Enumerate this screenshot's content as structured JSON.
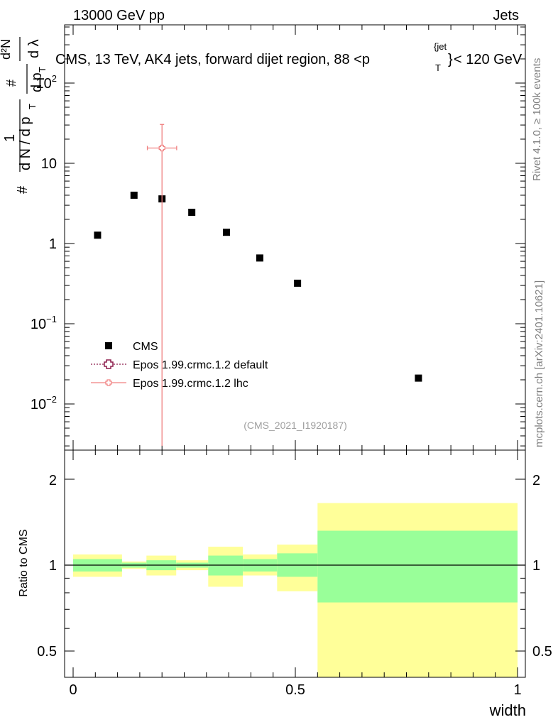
{
  "header": {
    "energy": "13000 GeV pp",
    "category": "Jets"
  },
  "main_plot": {
    "title_left": "CMS, 13 TeV, AK4 jets, forward dijet region, 88 <p",
    "title_sub": "T",
    "title_sup": "{jet",
    "title_close": "}",
    "title_right": "< 120 GeV",
    "ylabel_num_main": "1",
    "ylabel_num_frac": "d²N",
    "ylabel_den_main": "d N / d p",
    "ylabel_den_sub": "T",
    "ylabel_den_frac_top": "#",
    "ylabel_den_frac_bot": "d p",
    "ylabel_den_frac_bot_sub": "T",
    "ylabel_den_frac_end": "d λ",
    "ylabel_prefix": "#",
    "y_tick_labels": [
      "10",
      "10",
      "1",
      "10",
      "10"
    ],
    "y_tick_sup": [
      "2",
      "",
      "",
      "−1",
      "−2"
    ],
    "watermark": "(CMS_2021_I1920187)"
  },
  "legend": [
    {
      "label": "CMS",
      "marker": "filled-square",
      "color": "#000000"
    },
    {
      "label": "Epos 1.99.crmc.1.2 default",
      "marker": "open-cross",
      "color": "#8b1a4a"
    },
    {
      "label": "Epos 1.99.crmc.1.2 lhc",
      "marker": "open-cross-line",
      "color": "#f08080"
    }
  ],
  "side_labels": {
    "rivet": "Rivet 4.1.0, ≥ 100k events",
    "mcplots": "mcplots.cern.ch [arXiv:2401.10621]"
  },
  "ratio_plot": {
    "ylabel": "Ratio to CMS",
    "y_tick_labels": [
      "2",
      "1",
      "0.5"
    ],
    "xlabel": "width",
    "x_tick_labels": [
      "0",
      "0.5",
      "1"
    ]
  },
  "chart_data": {
    "type": "scatter",
    "title": "CMS, 13 TeV, AK4 jets, forward dijet region, 88 < pT < 120 GeV",
    "xlabel": "width",
    "ylabel": "1/dN/dpT dN²/dpT dλ",
    "xlim": [
      -0.02,
      1.02
    ],
    "ylim": [
      0.0028,
      500
    ],
    "yscale": "log",
    "series": [
      {
        "name": "CMS",
        "x": [
          0.055,
          0.137,
          0.2,
          0.267,
          0.345,
          0.42,
          0.505,
          0.777
        ],
        "y": [
          1.27,
          4.0,
          3.6,
          2.45,
          1.38,
          0.66,
          0.32,
          0.021
        ]
      },
      {
        "name": "Epos 1.99.crmc.1.2 lhc",
        "x": [
          0.2
        ],
        "y": [
          15.5
        ],
        "xerr": [
          0.033
        ],
        "yerr_low": [
          15.497
        ],
        "yerr_high": [
          15.0
        ]
      }
    ],
    "ratio": {
      "ylabel": "Ratio to CMS",
      "ylim": [
        0.38,
        2.45
      ],
      "yscale": "log",
      "bins": [
        {
          "x_lo": 0.0,
          "x_hi": 0.11,
          "stat_lo": 0.95,
          "stat_hi": 1.05,
          "total_lo": 0.91,
          "total_hi": 1.09
        },
        {
          "x_lo": 0.11,
          "x_hi": 0.165,
          "stat_lo": 0.98,
          "stat_hi": 1.02,
          "total_lo": 0.97,
          "total_hi": 1.03
        },
        {
          "x_lo": 0.165,
          "x_hi": 0.232,
          "stat_lo": 0.96,
          "stat_hi": 1.04,
          "total_lo": 0.92,
          "total_hi": 1.08
        },
        {
          "x_lo": 0.232,
          "x_hi": 0.304,
          "stat_lo": 0.98,
          "stat_hi": 1.02,
          "total_lo": 0.96,
          "total_hi": 1.04
        },
        {
          "x_lo": 0.304,
          "x_hi": 0.382,
          "stat_lo": 0.92,
          "stat_hi": 1.08,
          "total_lo": 0.84,
          "total_hi": 1.16
        },
        {
          "x_lo": 0.382,
          "x_hi": 0.459,
          "stat_lo": 0.95,
          "stat_hi": 1.05,
          "total_lo": 0.92,
          "total_hi": 1.09
        },
        {
          "x_lo": 0.459,
          "x_hi": 0.55,
          "stat_lo": 0.91,
          "stat_hi": 1.1,
          "total_lo": 0.81,
          "total_hi": 1.18
        },
        {
          "x_lo": 0.55,
          "x_hi": 1.0,
          "stat_lo": 0.74,
          "stat_hi": 1.32,
          "total_lo": 0.3,
          "total_hi": 1.65
        }
      ],
      "stat_color": "#99ff99",
      "total_color": "#ffff99"
    }
  }
}
